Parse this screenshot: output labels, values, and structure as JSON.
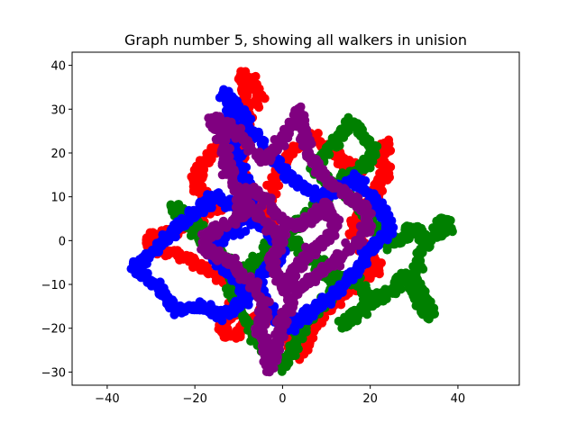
{
  "chart_data": {
    "type": "scatter",
    "title": "Graph number 5, showing all walkers in unision",
    "xlabel": "",
    "ylabel": "",
    "xlim": [
      -48,
      54
    ],
    "ylim": [
      -33,
      43
    ],
    "xticks": [
      -40,
      -20,
      0,
      20,
      40
    ],
    "yticks": [
      -30,
      -20,
      -10,
      0,
      10,
      20,
      30,
      40
    ],
    "xtick_labels": [
      "−40",
      "−20",
      "0",
      "20",
      "40"
    ],
    "ytick_labels": [
      "−30",
      "−20",
      "−10",
      "0",
      "10",
      "20",
      "30",
      "40"
    ],
    "grid": false,
    "legend": "none",
    "series": [
      {
        "color": "#ff0000",
        "path": [
          [
            -2,
            3
          ],
          [
            -6,
            10
          ],
          [
            -10,
            16
          ],
          [
            -9,
            23
          ],
          [
            -8,
            30
          ],
          [
            -9,
            36
          ],
          [
            -9,
            38
          ],
          [
            -7,
            36
          ],
          [
            -5,
            33
          ],
          [
            -9,
            28
          ],
          [
            -14,
            22
          ],
          [
            -17,
            19
          ],
          [
            -19,
            16
          ],
          [
            -20,
            13
          ],
          [
            -18,
            10
          ],
          [
            -14,
            8
          ],
          [
            -18,
            6
          ],
          [
            -22,
            4
          ],
          [
            -25,
            2
          ],
          [
            -28,
            1
          ],
          [
            -31,
            0
          ],
          [
            -29,
            -2
          ],
          [
            -24,
            -3
          ],
          [
            -18,
            -6
          ],
          [
            -12,
            -10
          ],
          [
            -10,
            -14
          ],
          [
            -12,
            -17
          ],
          [
            -14,
            -20
          ],
          [
            -12,
            -22
          ],
          [
            -8,
            -19
          ],
          [
            -4,
            -16
          ],
          [
            0,
            -20
          ],
          [
            2,
            -24
          ],
          [
            4,
            -26
          ],
          [
            6,
            -22
          ],
          [
            8,
            -18
          ],
          [
            11,
            -15
          ],
          [
            14,
            -12
          ],
          [
            18,
            -9
          ],
          [
            22,
            -6
          ],
          [
            19,
            -2
          ],
          [
            16,
            2
          ],
          [
            18,
            6
          ],
          [
            21,
            10
          ],
          [
            22,
            13
          ],
          [
            24,
            16
          ],
          [
            22,
            19
          ],
          [
            24,
            22
          ],
          [
            21,
            20
          ],
          [
            18,
            16
          ],
          [
            14,
            18
          ],
          [
            11,
            21
          ],
          [
            7,
            24
          ],
          [
            3,
            21
          ],
          [
            -1,
            16
          ],
          [
            -3,
            9
          ],
          [
            -2,
            3
          ]
        ]
      },
      {
        "color": "#008000",
        "path": [
          [
            1,
            0
          ],
          [
            5,
            -3
          ],
          [
            9,
            -6
          ],
          [
            13,
            -8
          ],
          [
            17,
            -10
          ],
          [
            20,
            -13
          ],
          [
            17,
            -17
          ],
          [
            14,
            -19
          ],
          [
            18,
            -16
          ],
          [
            22,
            -13
          ],
          [
            26,
            -11
          ],
          [
            28,
            -8
          ],
          [
            30,
            -12
          ],
          [
            32,
            -15
          ],
          [
            34,
            -17
          ],
          [
            32,
            -13
          ],
          [
            30,
            -7
          ],
          [
            32,
            -2
          ],
          [
            35,
            2
          ],
          [
            37,
            5
          ],
          [
            38,
            3
          ],
          [
            33,
            0
          ],
          [
            30,
            3
          ],
          [
            28,
            1
          ],
          [
            25,
            -1
          ],
          [
            22,
            2
          ],
          [
            19,
            6
          ],
          [
            16,
            9
          ],
          [
            13,
            12
          ],
          [
            10,
            14
          ],
          [
            7,
            17
          ],
          [
            10,
            20
          ],
          [
            13,
            24
          ],
          [
            15,
            27
          ],
          [
            18,
            25
          ],
          [
            21,
            20
          ],
          [
            18,
            17
          ],
          [
            14,
            14
          ],
          [
            10,
            10
          ],
          [
            6,
            6
          ],
          [
            2,
            3
          ],
          [
            -2,
            0
          ],
          [
            -5,
            -4
          ],
          [
            -9,
            -7
          ],
          [
            -13,
            -5
          ],
          [
            -17,
            -1
          ],
          [
            -19,
            3
          ],
          [
            -22,
            6
          ],
          [
            -25,
            8
          ],
          [
            -22,
            4
          ],
          [
            -18,
            0
          ],
          [
            -14,
            -3
          ],
          [
            -10,
            -7
          ],
          [
            -12,
            -12
          ],
          [
            -9,
            -17
          ],
          [
            -6,
            -22
          ],
          [
            -3,
            -26
          ],
          [
            0,
            -29
          ],
          [
            2,
            -26
          ],
          [
            4,
            -21
          ],
          [
            7,
            -17
          ],
          [
            10,
            -14
          ],
          [
            12,
            -10
          ],
          [
            8,
            -5
          ],
          [
            4,
            -1
          ],
          [
            1,
            0
          ]
        ]
      },
      {
        "color": "#0000ff",
        "path": [
          [
            -3,
            2
          ],
          [
            -7,
            5
          ],
          [
            -11,
            8
          ],
          [
            -15,
            10
          ],
          [
            -18,
            8
          ],
          [
            -22,
            5
          ],
          [
            -25,
            2
          ],
          [
            -28,
            -1
          ],
          [
            -31,
            -4
          ],
          [
            -34,
            -6
          ],
          [
            -31,
            -8
          ],
          [
            -28,
            -11
          ],
          [
            -26,
            -14
          ],
          [
            -23,
            -16
          ],
          [
            -19,
            -15
          ],
          [
            -15,
            -17
          ],
          [
            -11,
            -16
          ],
          [
            -8,
            -13
          ],
          [
            -10,
            -9
          ],
          [
            -14,
            -6
          ],
          [
            -17,
            -2
          ],
          [
            -14,
            1
          ],
          [
            -10,
            3
          ],
          [
            -7,
            7
          ],
          [
            -8,
            12
          ],
          [
            -10,
            18
          ],
          [
            -11,
            24
          ],
          [
            -12,
            30
          ],
          [
            -13,
            34
          ],
          [
            -10,
            30
          ],
          [
            -7,
            25
          ],
          [
            -3,
            20
          ],
          [
            1,
            15
          ],
          [
            5,
            12
          ],
          [
            9,
            10
          ],
          [
            13,
            12
          ],
          [
            17,
            14
          ],
          [
            20,
            10
          ],
          [
            23,
            6
          ],
          [
            25,
            3
          ],
          [
            22,
            0
          ],
          [
            19,
            -3
          ],
          [
            17,
            -7
          ],
          [
            14,
            -10
          ],
          [
            11,
            -13
          ],
          [
            8,
            -15
          ],
          [
            5,
            -17
          ],
          [
            2,
            -20
          ],
          [
            -1,
            -18
          ],
          [
            -4,
            -14
          ],
          [
            -6,
            -10
          ],
          [
            -3,
            -6
          ],
          [
            0,
            -2
          ],
          [
            -3,
            2
          ]
        ]
      },
      {
        "color": "#800080",
        "path": [
          [
            0,
            0
          ],
          [
            -4,
            4
          ],
          [
            -8,
            8
          ],
          [
            -11,
            12
          ],
          [
            -13,
            18
          ],
          [
            -14,
            24
          ],
          [
            -16,
            28
          ],
          [
            -12,
            26
          ],
          [
            -8,
            22
          ],
          [
            -4,
            18
          ],
          [
            -1,
            22
          ],
          [
            2,
            26
          ],
          [
            4,
            30
          ],
          [
            5,
            24
          ],
          [
            7,
            18
          ],
          [
            10,
            14
          ],
          [
            14,
            11
          ],
          [
            18,
            8
          ],
          [
            20,
            4
          ],
          [
            17,
            0
          ],
          [
            13,
            -4
          ],
          [
            9,
            -7
          ],
          [
            5,
            -10
          ],
          [
            2,
            -14
          ],
          [
            0,
            -18
          ],
          [
            -1,
            -22
          ],
          [
            -2,
            -26
          ],
          [
            -3,
            -29
          ],
          [
            -4,
            -25
          ],
          [
            -5,
            -20
          ],
          [
            -4,
            -15
          ],
          [
            -6,
            -11
          ],
          [
            -9,
            -8
          ],
          [
            -12,
            -5
          ],
          [
            -15,
            -3
          ],
          [
            -18,
            -1
          ],
          [
            -16,
            2
          ],
          [
            -12,
            4
          ],
          [
            -9,
            6
          ],
          [
            -10,
            10
          ],
          [
            -7,
            12
          ],
          [
            -4,
            9
          ],
          [
            -1,
            5
          ],
          [
            3,
            3
          ],
          [
            7,
            5
          ],
          [
            10,
            8
          ],
          [
            12,
            4
          ],
          [
            10,
            0
          ],
          [
            6,
            -3
          ],
          [
            3,
            -7
          ],
          [
            1,
            -11
          ],
          [
            -1,
            -8
          ],
          [
            -3,
            -4
          ],
          [
            0,
            0
          ]
        ]
      }
    ]
  }
}
